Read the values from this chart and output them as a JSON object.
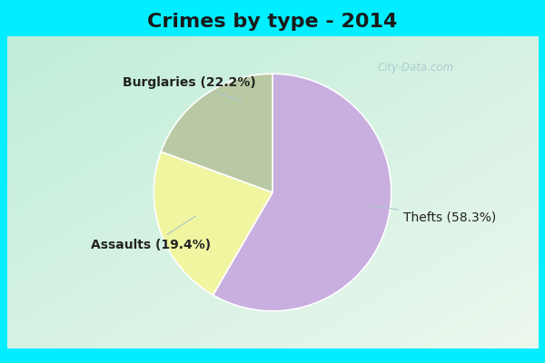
{
  "title": "Crimes by type - 2014",
  "slices": [
    {
      "label": "Thefts",
      "pct": 58.3,
      "color": "#c9aee0"
    },
    {
      "label": "Burglaries",
      "pct": 22.2,
      "color": "#f0f5a0"
    },
    {
      "label": "Assaults",
      "pct": 19.4,
      "color": "#b8c9a3"
    }
  ],
  "label_thefts": "Thefts (58.3%)",
  "label_burglaries": "Burglaries (22.2%)",
  "label_assaults": "Assaults (19.4%)",
  "title_fontsize": 16,
  "label_fontsize": 10,
  "bg_cyan": "#00eeff",
  "watermark": "City-Data.com",
  "watermark_color": "#a8c8d0",
  "label_color": "#222222",
  "line_color": "#aac4cc",
  "title_color": "#1a1a1a"
}
